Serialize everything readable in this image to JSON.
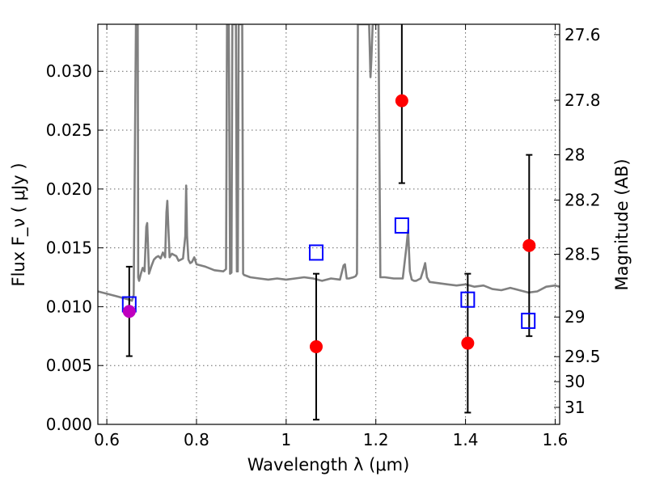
{
  "chart_data": {
    "type": "scatter",
    "xlabel": "Wavelength  λ (μm)",
    "ylabel": "Flux  F_ν  ( μJy )",
    "y2label": "Magnitude (AB)",
    "xlim": [
      0.58,
      1.61
    ],
    "ylim": [
      0.0,
      0.034
    ],
    "x_ticks": [
      {
        "value": 0.6,
        "label": "0.6"
      },
      {
        "value": 0.8,
        "label": "0.8"
      },
      {
        "value": 1.0,
        "label": "1"
      },
      {
        "value": 1.2,
        "label": "1.2"
      },
      {
        "value": 1.4,
        "label": "1.4"
      },
      {
        "value": 1.6,
        "label": "1.6"
      }
    ],
    "y_ticks": [
      {
        "value": 0.0,
        "label": "0.000"
      },
      {
        "value": 0.005,
        "label": "0.005"
      },
      {
        "value": 0.01,
        "label": "0.010"
      },
      {
        "value": 0.015,
        "label": "0.015"
      },
      {
        "value": 0.02,
        "label": "0.020"
      },
      {
        "value": 0.025,
        "label": "0.025"
      },
      {
        "value": 0.03,
        "label": "0.030"
      }
    ],
    "y2_ticks": [
      {
        "mag": 27.6,
        "label": "27.6"
      },
      {
        "mag": 27.8,
        "label": "27.8"
      },
      {
        "mag": 28.0,
        "label": "28"
      },
      {
        "mag": 28.2,
        "label": "28.2"
      },
      {
        "mag": 28.5,
        "label": "28.5"
      },
      {
        "mag": 29.0,
        "label": "29"
      },
      {
        "mag": 29.5,
        "label": "29.5"
      },
      {
        "mag": 30.0,
        "label": "30"
      },
      {
        "mag": 31.0,
        "label": "31"
      }
    ],
    "grid": true,
    "colors": {
      "model_line": "#808080",
      "observed": "#ff0000",
      "observed_first": "#bf00bf",
      "model_boxes": "#0000ff",
      "error_bars": "#000000"
    },
    "series": [
      {
        "kind": "line",
        "x": [
          0.58,
          0.6,
          0.62,
          0.64,
          0.65,
          0.656,
          0.66,
          0.665,
          0.666,
          0.667,
          0.669,
          0.67,
          0.672,
          0.676,
          0.68,
          0.684,
          0.688,
          0.69,
          0.692,
          0.694,
          0.7,
          0.705,
          0.71,
          0.715,
          0.72,
          0.725,
          0.73,
          0.733,
          0.735,
          0.737,
          0.74,
          0.745,
          0.75,
          0.755,
          0.76,
          0.765,
          0.77,
          0.775,
          0.777,
          0.779,
          0.782,
          0.786,
          0.79,
          0.795,
          0.8,
          0.82,
          0.84,
          0.86,
          0.866,
          0.868,
          0.87,
          0.872,
          0.875,
          0.878,
          0.88,
          0.882,
          0.884,
          0.886,
          0.888,
          0.89,
          0.892,
          0.894,
          0.897,
          0.9,
          0.902,
          0.904,
          0.906,
          0.92,
          0.94,
          0.96,
          0.98,
          1.0,
          1.02,
          1.04,
          1.06,
          1.08,
          1.1,
          1.12,
          1.128,
          1.131,
          1.135,
          1.14,
          1.15,
          1.155,
          1.158,
          1.16,
          1.17,
          1.18,
          1.185,
          1.188,
          1.19,
          1.193,
          1.198,
          1.2,
          1.203,
          1.206,
          1.21,
          1.22,
          1.24,
          1.26,
          1.268,
          1.272,
          1.276,
          1.28,
          1.285,
          1.29,
          1.3,
          1.305,
          1.31,
          1.314,
          1.32,
          1.34,
          1.36,
          1.38,
          1.4,
          1.42,
          1.44,
          1.46,
          1.48,
          1.5,
          1.52,
          1.54,
          1.56,
          1.58,
          1.6,
          1.61
        ],
        "y": [
          0.0113,
          0.0111,
          0.0109,
          0.0107,
          0.0106,
          0.0105,
          0.011,
          0.034,
          0.034,
          0.034,
          0.034,
          0.0125,
          0.0122,
          0.0128,
          0.0133,
          0.013,
          0.0168,
          0.0171,
          0.015,
          0.0128,
          0.0135,
          0.014,
          0.0142,
          0.0143,
          0.0141,
          0.0146,
          0.0142,
          0.018,
          0.019,
          0.017,
          0.0142,
          0.0145,
          0.0144,
          0.0143,
          0.0139,
          0.014,
          0.0141,
          0.016,
          0.0203,
          0.016,
          0.014,
          0.0137,
          0.0138,
          0.0142,
          0.0136,
          0.0134,
          0.0131,
          0.013,
          0.0132,
          0.034,
          0.034,
          0.034,
          0.0128,
          0.0129,
          0.034,
          0.034,
          0.034,
          0.034,
          0.034,
          0.013,
          0.013,
          0.034,
          0.034,
          0.034,
          0.034,
          0.0128,
          0.0127,
          0.0125,
          0.0124,
          0.0123,
          0.0124,
          0.0123,
          0.0124,
          0.0125,
          0.0124,
          0.0122,
          0.0124,
          0.0123,
          0.0135,
          0.0136,
          0.0124,
          0.0124,
          0.0125,
          0.0126,
          0.0128,
          0.034,
          0.034,
          0.034,
          0.034,
          0.0295,
          0.031,
          0.034,
          0.034,
          0.034,
          0.034,
          0.034,
          0.0125,
          0.0125,
          0.0124,
          0.0124,
          0.015,
          0.0165,
          0.013,
          0.0123,
          0.0122,
          0.0122,
          0.0124,
          0.013,
          0.0137,
          0.0125,
          0.0121,
          0.012,
          0.0119,
          0.0118,
          0.0119,
          0.0117,
          0.0118,
          0.0115,
          0.0114,
          0.0116,
          0.0114,
          0.0112,
          0.0113,
          0.0117,
          0.0118,
          0.0117
        ]
      },
      {
        "kind": "box",
        "x": [
          0.65,
          1.067,
          1.258,
          1.405,
          1.54
        ],
        "y": [
          0.0102,
          0.0146,
          0.0169,
          0.0106,
          0.0088
        ]
      },
      {
        "kind": "point_errorbar",
        "x": [
          0.65,
          1.067,
          1.258,
          1.405,
          1.542
        ],
        "y": [
          0.0096,
          0.0066,
          0.0275,
          0.0069,
          0.0152
        ],
        "yerr": [
          0.0038,
          0.0062,
          0.007,
          0.0059,
          0.0077
        ]
      }
    ]
  }
}
